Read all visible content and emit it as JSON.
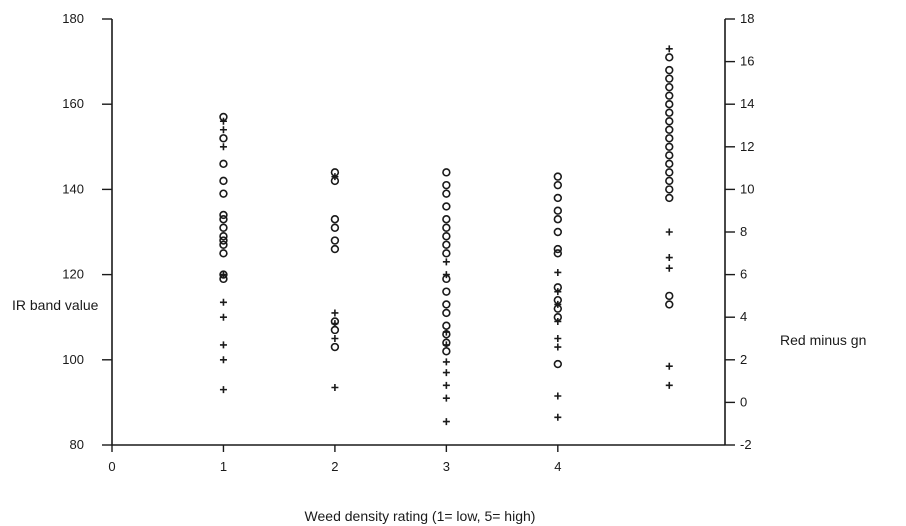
{
  "chart_data": {
    "type": "scatter",
    "title": "",
    "xlabel": "Weed density rating (1= low, 5= high)",
    "ylabel": "IR band value",
    "y2label": "Red minus gn",
    "x_ticks": [
      "0",
      "1",
      "2",
      "3",
      "4"
    ],
    "xlim": [
      0,
      5.5
    ],
    "ylim": [
      80,
      180
    ],
    "y_ticks": [
      "80",
      "100",
      "120",
      "140",
      "160",
      "180"
    ],
    "y2lim": [
      -2,
      18
    ],
    "y2_ticks": [
      "-2",
      "0",
      "2",
      "4",
      "6",
      "8",
      "10",
      "12",
      "14",
      "16",
      "18"
    ],
    "grid": false,
    "series": [
      {
        "marker": "circle",
        "axis": "left",
        "points": [
          {
            "x": 1,
            "y": 157
          },
          {
            "x": 1,
            "y": 152
          },
          {
            "x": 1,
            "y": 146
          },
          {
            "x": 1,
            "y": 142
          },
          {
            "x": 1,
            "y": 139
          },
          {
            "x": 1,
            "y": 134
          },
          {
            "x": 1,
            "y": 133
          },
          {
            "x": 1,
            "y": 131
          },
          {
            "x": 1,
            "y": 129
          },
          {
            "x": 1,
            "y": 128
          },
          {
            "x": 1,
            "y": 127
          },
          {
            "x": 1,
            "y": 125
          },
          {
            "x": 1,
            "y": 120
          },
          {
            "x": 1,
            "y": 119
          },
          {
            "x": 2,
            "y": 144
          },
          {
            "x": 2,
            "y": 142
          },
          {
            "x": 2,
            "y": 133
          },
          {
            "x": 2,
            "y": 131
          },
          {
            "x": 2,
            "y": 128
          },
          {
            "x": 2,
            "y": 126
          },
          {
            "x": 2,
            "y": 109
          },
          {
            "x": 2,
            "y": 107
          },
          {
            "x": 2,
            "y": 103
          },
          {
            "x": 3,
            "y": 144
          },
          {
            "x": 3,
            "y": 141
          },
          {
            "x": 3,
            "y": 139
          },
          {
            "x": 3,
            "y": 136
          },
          {
            "x": 3,
            "y": 133
          },
          {
            "x": 3,
            "y": 131
          },
          {
            "x": 3,
            "y": 129
          },
          {
            "x": 3,
            "y": 127
          },
          {
            "x": 3,
            "y": 125
          },
          {
            "x": 3,
            "y": 119
          },
          {
            "x": 3,
            "y": 116
          },
          {
            "x": 3,
            "y": 113
          },
          {
            "x": 3,
            "y": 111
          },
          {
            "x": 3,
            "y": 108
          },
          {
            "x": 3,
            "y": 106
          },
          {
            "x": 3,
            "y": 104
          },
          {
            "x": 3,
            "y": 102
          },
          {
            "x": 4,
            "y": 143
          },
          {
            "x": 4,
            "y": 141
          },
          {
            "x": 4,
            "y": 138
          },
          {
            "x": 4,
            "y": 135
          },
          {
            "x": 4,
            "y": 133
          },
          {
            "x": 4,
            "y": 130
          },
          {
            "x": 4,
            "y": 126
          },
          {
            "x": 4,
            "y": 125
          },
          {
            "x": 4,
            "y": 117
          },
          {
            "x": 4,
            "y": 114
          },
          {
            "x": 4,
            "y": 112
          },
          {
            "x": 4,
            "y": 110
          },
          {
            "x": 4,
            "y": 99
          },
          {
            "x": 5,
            "y": 171
          },
          {
            "x": 5,
            "y": 168
          },
          {
            "x": 5,
            "y": 166
          },
          {
            "x": 5,
            "y": 164
          },
          {
            "x": 5,
            "y": 162
          },
          {
            "x": 5,
            "y": 160
          },
          {
            "x": 5,
            "y": 158
          },
          {
            "x": 5,
            "y": 156
          },
          {
            "x": 5,
            "y": 154
          },
          {
            "x": 5,
            "y": 152
          },
          {
            "x": 5,
            "y": 150
          },
          {
            "x": 5,
            "y": 148
          },
          {
            "x": 5,
            "y": 146
          },
          {
            "x": 5,
            "y": 144
          },
          {
            "x": 5,
            "y": 142
          },
          {
            "x": 5,
            "y": 140
          },
          {
            "x": 5,
            "y": 138
          },
          {
            "x": 5,
            "y": 115
          },
          {
            "x": 5,
            "y": 113
          }
        ]
      },
      {
        "marker": "plus",
        "axis": "right",
        "points": [
          {
            "x": 1,
            "y": 13.2
          },
          {
            "x": 1,
            "y": 12.8
          },
          {
            "x": 1,
            "y": 12.0
          },
          {
            "x": 1,
            "y": 6.0
          },
          {
            "x": 1,
            "y": 4.7
          },
          {
            "x": 1,
            "y": 4.0
          },
          {
            "x": 1,
            "y": 2.7
          },
          {
            "x": 1,
            "y": 2.0
          },
          {
            "x": 1,
            "y": 0.6
          },
          {
            "x": 2,
            "y": 10.6
          },
          {
            "x": 2,
            "y": 4.2
          },
          {
            "x": 2,
            "y": 3.7
          },
          {
            "x": 2,
            "y": 3.0
          },
          {
            "x": 2,
            "y": 0.7
          },
          {
            "x": 3,
            "y": 6.6
          },
          {
            "x": 3,
            "y": 6.0
          },
          {
            "x": 3,
            "y": 3.3
          },
          {
            "x": 3,
            "y": 2.7
          },
          {
            "x": 3,
            "y": 1.9
          },
          {
            "x": 3,
            "y": 1.4
          },
          {
            "x": 3,
            "y": 0.8
          },
          {
            "x": 3,
            "y": 0.2
          },
          {
            "x": 3,
            "y": -0.9
          },
          {
            "x": 4,
            "y": 6.1
          },
          {
            "x": 4,
            "y": 5.2
          },
          {
            "x": 4,
            "y": 4.6
          },
          {
            "x": 4,
            "y": 3.8
          },
          {
            "x": 4,
            "y": 3.0
          },
          {
            "x": 4,
            "y": 2.6
          },
          {
            "x": 4,
            "y": 0.3
          },
          {
            "x": 4,
            "y": -0.7
          },
          {
            "x": 5,
            "y": 16.6
          },
          {
            "x": 5,
            "y": 8.0
          },
          {
            "x": 5,
            "y": 6.8
          },
          {
            "x": 5,
            "y": 6.3
          },
          {
            "x": 5,
            "y": 1.7
          },
          {
            "x": 5,
            "y": 0.8
          }
        ]
      }
    ]
  }
}
